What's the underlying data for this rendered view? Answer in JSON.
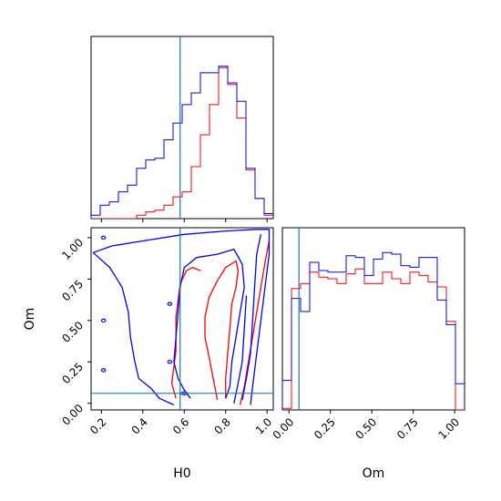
{
  "chart_data": {
    "type": "corner",
    "parameters": [
      "H0",
      "Om"
    ],
    "xlabels": {
      "h0": "H0",
      "om": "Om"
    },
    "ylabel_2d": "Om",
    "truth": {
      "H0": 0.58,
      "Om": 0.06
    },
    "colors": {
      "blue": "#0000ff",
      "red": "#ff0000",
      "truth": "#1f77b4"
    },
    "h0_axis": {
      "xlim": [
        0.15,
        1.03
      ],
      "ticks": [
        "0.2",
        "0.4",
        "0.6",
        "0.8",
        "1.0"
      ]
    },
    "om_axis": {
      "xlim": [
        -0.04,
        1.06
      ],
      "ylim": [
        -0.04,
        1.06
      ],
      "ticks": [
        "0.00",
        "0.25",
        "0.50",
        "0.75",
        "1.00"
      ]
    },
    "hist_h0": {
      "bin_edges": [
        0.15,
        0.194,
        0.238,
        0.282,
        0.326,
        0.37,
        0.414,
        0.458,
        0.502,
        0.546,
        0.59,
        0.634,
        0.678,
        0.722,
        0.766,
        0.81,
        0.854,
        0.898,
        0.942,
        0.986,
        1.03
      ],
      "blue": [
        0.02,
        0.08,
        0.1,
        0.16,
        0.2,
        0.3,
        0.35,
        0.36,
        0.47,
        0.57,
        0.68,
        0.75,
        0.87,
        0.87,
        0.91,
        0.81,
        0.7,
        0.3,
        0.12,
        0.03
      ],
      "red": [
        0,
        0,
        0,
        0,
        0,
        0.02,
        0.04,
        0.05,
        0.08,
        0.13,
        0.16,
        0.31,
        0.5,
        0.68,
        0.9,
        0.8,
        0.6,
        0.29,
        0.12,
        0.02
      ]
    },
    "hist_om": {
      "bin_edges": [
        -0.04,
        0.015,
        0.07,
        0.125,
        0.18,
        0.235,
        0.29,
        0.345,
        0.4,
        0.455,
        0.51,
        0.565,
        0.62,
        0.675,
        0.73,
        0.785,
        0.84,
        0.895,
        0.95,
        1.005,
        1.06
      ],
      "blue": [
        0.18,
        0.68,
        0.6,
        0.9,
        0.85,
        0.84,
        0.84,
        0.94,
        0.93,
        0.82,
        0.92,
        0.96,
        0.95,
        0.88,
        0.87,
        0.93,
        0.93,
        0.67,
        0.52,
        0.16
      ],
      "red": [
        0.01,
        0.74,
        0.77,
        0.84,
        0.81,
        0.8,
        0.77,
        0.83,
        0.86,
        0.77,
        0.77,
        0.84,
        0.8,
        0.77,
        0.84,
        0.82,
        0.78,
        0.75,
        0.54,
        0.0
      ]
    },
    "contours_2d": {
      "blue": [
        [
          [
            0.55,
            -0.01
          ],
          [
            0.48,
            0.03
          ],
          [
            0.44,
            0.09
          ],
          [
            0.38,
            0.15
          ],
          [
            0.36,
            0.26
          ],
          [
            0.34,
            0.4
          ],
          [
            0.33,
            0.55
          ],
          [
            0.3,
            0.7
          ],
          [
            0.24,
            0.82
          ],
          [
            0.16,
            0.91
          ],
          [
            0.25,
            0.95
          ],
          [
            0.4,
            0.98
          ],
          [
            0.6,
            1.02
          ],
          [
            0.8,
            1.04
          ],
          [
            0.95,
            1.05
          ],
          [
            1.01,
            1.05
          ],
          [
            1.01,
            0.9
          ],
          [
            0.99,
            0.7
          ],
          [
            0.97,
            0.5
          ],
          [
            0.95,
            0.3
          ],
          [
            0.93,
            0.1
          ],
          [
            0.92,
            -0.01
          ]
        ],
        [
          [
            0.63,
            0.03
          ],
          [
            0.6,
            0.08
          ],
          [
            0.57,
            0.15
          ],
          [
            0.55,
            0.25
          ],
          [
            0.56,
            0.4
          ],
          [
            0.57,
            0.55
          ],
          [
            0.58,
            0.7
          ],
          [
            0.6,
            0.82
          ],
          [
            0.66,
            0.88
          ],
          [
            0.76,
            0.9
          ],
          [
            0.84,
            0.93
          ],
          [
            0.88,
            0.84
          ],
          [
            0.89,
            0.7
          ],
          [
            0.87,
            0.55
          ],
          [
            0.85,
            0.4
          ],
          [
            0.83,
            0.25
          ],
          [
            0.82,
            0.1
          ],
          [
            0.8,
            0.03
          ]
        ],
        [
          [
            0.88,
            0.02
          ],
          [
            0.9,
            0.15
          ],
          [
            0.92,
            0.3
          ],
          [
            0.93,
            0.5
          ],
          [
            0.94,
            0.7
          ],
          [
            0.95,
            0.9
          ],
          [
            0.97,
            1.02
          ]
        ],
        [
          [
            0.84,
            0.0
          ],
          [
            0.86,
            0.12
          ],
          [
            0.88,
            0.25
          ],
          [
            0.89,
            0.45
          ],
          [
            0.9,
            0.65
          ]
        ]
      ],
      "red": [
        [
          [
            0.56,
            0.03
          ],
          [
            0.54,
            0.12
          ],
          [
            0.55,
            0.22
          ],
          [
            0.56,
            0.32
          ],
          [
            0.56,
            0.42
          ],
          [
            0.56,
            0.52
          ],
          [
            0.57,
            0.62
          ],
          [
            0.58,
            0.72
          ],
          [
            0.61,
            0.8
          ],
          [
            0.64,
            0.82
          ],
          [
            0.68,
            0.8
          ]
        ],
        [
          [
            0.76,
            0.02
          ],
          [
            0.74,
            0.15
          ],
          [
            0.72,
            0.28
          ],
          [
            0.7,
            0.4
          ],
          [
            0.7,
            0.52
          ],
          [
            0.72,
            0.64
          ],
          [
            0.76,
            0.74
          ],
          [
            0.8,
            0.82
          ],
          [
            0.85,
            0.86
          ],
          [
            0.86,
            0.8
          ],
          [
            0.85,
            0.7
          ],
          [
            0.83,
            0.6
          ],
          [
            0.82,
            0.45
          ],
          [
            0.81,
            0.3
          ],
          [
            0.8,
            0.15
          ],
          [
            0.8,
            0.03
          ]
        ],
        [
          [
            0.87,
            -0.01
          ],
          [
            0.89,
            0.1
          ],
          [
            0.91,
            0.25
          ],
          [
            0.93,
            0.4
          ],
          [
            0.95,
            0.55
          ],
          [
            0.97,
            0.7
          ],
          [
            0.99,
            0.85
          ],
          [
            1.01,
            0.98
          ]
        ],
        [
          [
            0.58,
            0.06
          ],
          [
            0.6,
            0.07
          ],
          [
            0.62,
            0.06
          ],
          [
            0.6,
            0.05
          ],
          [
            0.58,
            0.06
          ]
        ]
      ]
    }
  }
}
